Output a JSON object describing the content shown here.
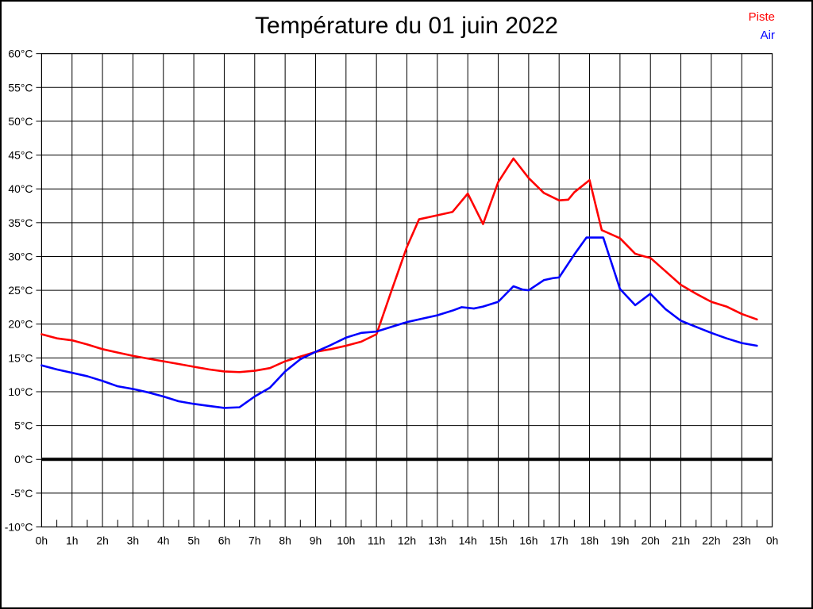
{
  "figure": {
    "title": "Température du 01 juin 2022"
  },
  "legend": {
    "items": [
      {
        "label": "Piste",
        "color": "#ff0000"
      },
      {
        "label": "Air",
        "color": "#0000ff"
      }
    ]
  },
  "chart_data": {
    "type": "line",
    "title": "Température du 01 juin 2022",
    "xlabel": "",
    "ylabel": "",
    "x_unit": "hour",
    "y_unit": "°C",
    "xlim": [
      0,
      24
    ],
    "ylim": [
      -10,
      60
    ],
    "grid": true,
    "legend_position": "top-right",
    "x_ticks": [
      0,
      1,
      2,
      3,
      4,
      5,
      6,
      7,
      8,
      9,
      10,
      11,
      12,
      13,
      14,
      15,
      16,
      17,
      18,
      19,
      20,
      21,
      22,
      23,
      24
    ],
    "x_tick_labels": [
      "0h",
      "1h",
      "2h",
      "3h",
      "4h",
      "5h",
      "6h",
      "7h",
      "8h",
      "9h",
      "10h",
      "11h",
      "12h",
      "13h",
      "14h",
      "15h",
      "16h",
      "17h",
      "18h",
      "19h",
      "20h",
      "21h",
      "22h",
      "23h",
      "0h"
    ],
    "y_ticks": [
      60,
      55,
      50,
      45,
      40,
      35,
      30,
      25,
      20,
      15,
      10,
      5,
      0,
      -5,
      -10
    ],
    "y_tick_labels": [
      "60°C",
      "55°C",
      "50°C",
      "45°C",
      "40°C",
      "35°C",
      "30°C",
      "25°C",
      "20°C",
      "15°C",
      "10°C",
      "5°C",
      "0°C",
      "-5°C",
      "-10°C"
    ],
    "zero_line": {
      "value": 0,
      "color": "#000000",
      "width": 4
    },
    "grid_color": "#000000",
    "background_color": "#ffffff",
    "series": [
      {
        "name": "Piste",
        "color": "#ff0000",
        "points": [
          [
            0,
            18.5
          ],
          [
            0.5,
            17.9
          ],
          [
            1,
            17.6
          ],
          [
            1.5,
            17.0
          ],
          [
            2,
            16.3
          ],
          [
            2.5,
            15.8
          ],
          [
            3,
            15.3
          ],
          [
            3.5,
            14.9
          ],
          [
            4,
            14.5
          ],
          [
            4.5,
            14.1
          ],
          [
            5,
            13.7
          ],
          [
            5.5,
            13.3
          ],
          [
            6,
            13.0
          ],
          [
            6.5,
            12.9
          ],
          [
            7,
            13.1
          ],
          [
            7.5,
            13.5
          ],
          [
            8,
            14.5
          ],
          [
            8.5,
            15.2
          ],
          [
            9,
            15.9
          ],
          [
            9.5,
            16.3
          ],
          [
            10,
            16.8
          ],
          [
            10.5,
            17.4
          ],
          [
            11,
            18.5
          ],
          [
            11.5,
            25.0
          ],
          [
            12,
            31.4
          ],
          [
            12.4,
            35.5
          ],
          [
            13,
            36.1
          ],
          [
            13.5,
            36.6
          ],
          [
            14,
            39.3
          ],
          [
            14.5,
            34.8
          ],
          [
            15,
            41.0
          ],
          [
            15.5,
            44.5
          ],
          [
            16,
            41.6
          ],
          [
            16.5,
            39.4
          ],
          [
            17,
            38.3
          ],
          [
            17.3,
            38.4
          ],
          [
            17.5,
            39.5
          ],
          [
            18,
            41.3
          ],
          [
            18.4,
            33.9
          ],
          [
            19,
            32.7
          ],
          [
            19.5,
            30.4
          ],
          [
            19.8,
            30.0
          ],
          [
            20,
            29.8
          ],
          [
            20.5,
            27.8
          ],
          [
            21,
            25.8
          ],
          [
            21.5,
            24.5
          ],
          [
            22,
            23.3
          ],
          [
            22.5,
            22.6
          ],
          [
            23,
            21.5
          ],
          [
            23.5,
            20.7
          ]
        ]
      },
      {
        "name": "Air",
        "color": "#0000ff",
        "points": [
          [
            0,
            13.9
          ],
          [
            0.5,
            13.3
          ],
          [
            1,
            12.8
          ],
          [
            1.5,
            12.3
          ],
          [
            2,
            11.6
          ],
          [
            2.5,
            10.8
          ],
          [
            3,
            10.4
          ],
          [
            3.5,
            9.9
          ],
          [
            4,
            9.3
          ],
          [
            4.5,
            8.6
          ],
          [
            5,
            8.2
          ],
          [
            5.5,
            7.9
          ],
          [
            6,
            7.6
          ],
          [
            6.5,
            7.7
          ],
          [
            7,
            9.3
          ],
          [
            7.5,
            10.6
          ],
          [
            8,
            13.0
          ],
          [
            8.5,
            14.8
          ],
          [
            9,
            15.9
          ],
          [
            9.5,
            16.9
          ],
          [
            10,
            18.0
          ],
          [
            10.5,
            18.7
          ],
          [
            11,
            18.9
          ],
          [
            11.5,
            19.6
          ],
          [
            12,
            20.3
          ],
          [
            12.5,
            20.8
          ],
          [
            13,
            21.3
          ],
          [
            13.5,
            22.0
          ],
          [
            13.8,
            22.5
          ],
          [
            14.2,
            22.3
          ],
          [
            14.5,
            22.6
          ],
          [
            15,
            23.3
          ],
          [
            15.5,
            25.6
          ],
          [
            15.8,
            25.1
          ],
          [
            16,
            25.0
          ],
          [
            16.5,
            26.5
          ],
          [
            16.8,
            26.8
          ],
          [
            17,
            26.9
          ],
          [
            17.5,
            30.3
          ],
          [
            17.9,
            32.8
          ],
          [
            18.45,
            32.8
          ],
          [
            19,
            25.2
          ],
          [
            19.5,
            22.8
          ],
          [
            20,
            24.5
          ],
          [
            20.5,
            22.2
          ],
          [
            21,
            20.5
          ],
          [
            21.5,
            19.6
          ],
          [
            22,
            18.7
          ],
          [
            22.5,
            17.9
          ],
          [
            23,
            17.2
          ],
          [
            23.5,
            16.8
          ]
        ]
      }
    ]
  }
}
